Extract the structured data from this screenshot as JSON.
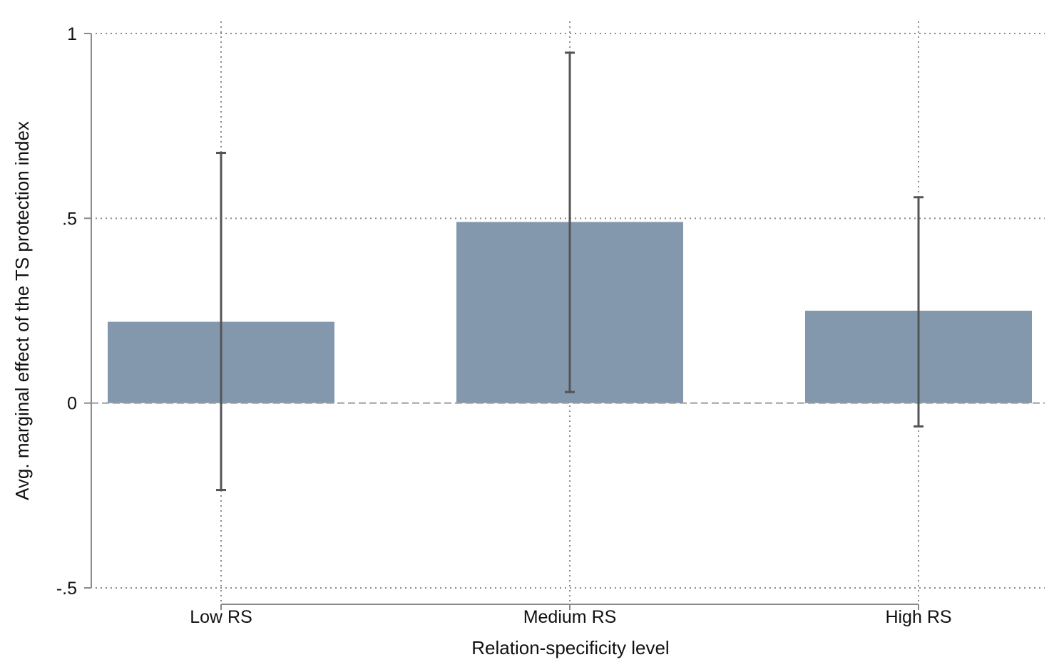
{
  "chart_data": {
    "type": "bar",
    "title": "",
    "xlabel": "Relation-specificity level",
    "ylabel": "Avg. marginal effect of the TS protection index",
    "categories": [
      "Low RS",
      "Medium RS",
      "High RS"
    ],
    "values": [
      0.22,
      0.49,
      0.25
    ],
    "error_low": [
      -0.235,
      0.03,
      -0.063
    ],
    "error_high": [
      0.677,
      0.948,
      0.557
    ],
    "ylim": [
      -0.5,
      1
    ],
    "yticks": [
      {
        "value": -0.5,
        "label": "-.5"
      },
      {
        "value": 0,
        "label": "0"
      },
      {
        "value": 0.5,
        "label": ".5"
      },
      {
        "value": 1,
        "label": "1"
      }
    ],
    "grid": true,
    "zero_line": "dashed",
    "colors": {
      "bar": "#8397ad",
      "error_bar": "#545454",
      "grid": "#8a8a8a",
      "axis": "#8a8a8a",
      "zero_line": "#9a9a9a"
    }
  }
}
